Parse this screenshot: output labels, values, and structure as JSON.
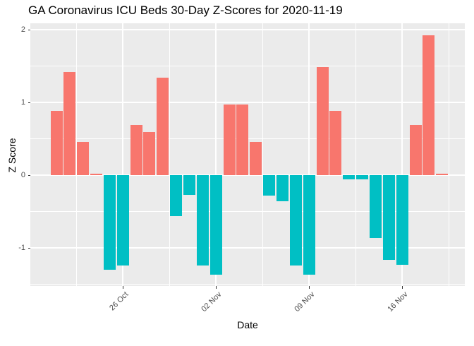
{
  "chart_data": {
    "type": "bar",
    "title": "GA Coronavirus ICU Beds 30-Day Z-Scores for 2020-11-19",
    "xlabel": "Date",
    "ylabel": "Z Score",
    "x": [
      "2020-10-21",
      "2020-10-22",
      "2020-10-23",
      "2020-10-24",
      "2020-10-25",
      "2020-10-26",
      "2020-10-27",
      "2020-10-28",
      "2020-10-29",
      "2020-10-30",
      "2020-10-31",
      "2020-11-01",
      "2020-11-02",
      "2020-11-03",
      "2020-11-04",
      "2020-11-05",
      "2020-11-06",
      "2020-11-07",
      "2020-11-08",
      "2020-11-09",
      "2020-11-10",
      "2020-11-11",
      "2020-11-12",
      "2020-11-13",
      "2020-11-14",
      "2020-11-15",
      "2020-11-16",
      "2020-11-17",
      "2020-11-18",
      "2020-11-19"
    ],
    "values": [
      0.89,
      1.42,
      0.46,
      0.02,
      -1.3,
      -1.24,
      0.69,
      0.6,
      1.34,
      -0.56,
      -0.27,
      -1.24,
      -1.37,
      0.97,
      0.97,
      0.46,
      -0.28,
      -0.36,
      -1.24,
      -1.37,
      1.49,
      0.89,
      -0.06,
      -0.06,
      -0.86,
      -1.16,
      -1.23,
      0.69,
      1.93,
      0.02
    ],
    "ylim": [
      -1.55,
      2.1
    ],
    "y_ticks": [
      {
        "value": 2,
        "label": "2"
      },
      {
        "value": 1,
        "label": "1"
      },
      {
        "value": 0,
        "label": "0"
      },
      {
        "value": -1,
        "label": "-1"
      }
    ],
    "x_ticks": [
      {
        "day": 5,
        "label": "26 Oct"
      },
      {
        "day": 12,
        "label": "02 Nov"
      },
      {
        "day": 19,
        "label": "09 Nov"
      },
      {
        "day": 26,
        "label": "16 Nov"
      }
    ],
    "legend": "none",
    "grid": "on",
    "positive_color": "#F8766D",
    "negative_color": "#00BFC4",
    "panel_bg": "#EBEBEB",
    "grid_color": "#FFFFFF",
    "tick_label_color": "#4D4D4D",
    "tick_mark_color": "#333333"
  }
}
